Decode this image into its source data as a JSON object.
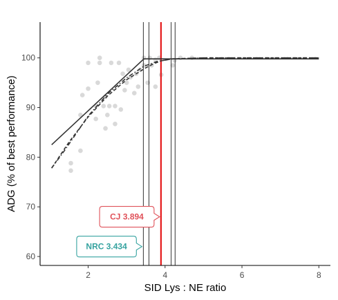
{
  "chart_data": {
    "type": "scatter",
    "xlabel": "SID Lys : NE ratio",
    "ylabel": "ADG (% of best performance)",
    "xlim": [
      0.75,
      8.3
    ],
    "ylim": [
      58.2,
      107.2
    ],
    "x_ticks": [
      2,
      4,
      6,
      8
    ],
    "y_ticks": [
      60,
      70,
      80,
      90,
      100
    ],
    "grid": false,
    "colors": {
      "points": "#d9d9d9",
      "fit_line": "#333333",
      "cj_line": "#e41a1c",
      "cj_text": "#e0525a",
      "nrc_text": "#36a3a0",
      "axis": "#000000",
      "tick_text": "#4d4d4d"
    },
    "points": [
      [
        1.55,
        77.3
      ],
      [
        1.55,
        78.8
      ],
      [
        1.8,
        81.3
      ],
      [
        1.8,
        88.5
      ],
      [
        1.85,
        92.5
      ],
      [
        2.0,
        99.0
      ],
      [
        2.0,
        93.8
      ],
      [
        2.2,
        87.7
      ],
      [
        2.2,
        90.3
      ],
      [
        2.25,
        95.0
      ],
      [
        2.3,
        99.0
      ],
      [
        2.3,
        100.0
      ],
      [
        2.4,
        90.3
      ],
      [
        2.45,
        85.8
      ],
      [
        2.45,
        92.2
      ],
      [
        2.5,
        88.5
      ],
      [
        2.55,
        90.3
      ],
      [
        2.6,
        99.0
      ],
      [
        2.7,
        86.7
      ],
      [
        2.7,
        90.3
      ],
      [
        2.8,
        99.0
      ],
      [
        2.85,
        89.6
      ],
      [
        2.9,
        96.8
      ],
      [
        2.95,
        93.5
      ],
      [
        3.0,
        95.0
      ],
      [
        3.05,
        97.6
      ],
      [
        3.1,
        96.1
      ],
      [
        3.2,
        92.9
      ],
      [
        3.25,
        96.8
      ],
      [
        3.3,
        94.2
      ],
      [
        3.35,
        97.6
      ],
      [
        3.45,
        100.0
      ],
      [
        3.45,
        98.5
      ],
      [
        3.55,
        95.0
      ],
      [
        3.6,
        100.0
      ],
      [
        3.65,
        98.5
      ],
      [
        3.75,
        94.2
      ],
      [
        3.75,
        99.6
      ],
      [
        3.85,
        100.0
      ],
      [
        3.9,
        96.6
      ],
      [
        4.2,
        98.5
      ],
      [
        4.25,
        99.5
      ],
      [
        4.4,
        100.0
      ],
      [
        4.7,
        100.0
      ]
    ],
    "fits": [
      {
        "style": "solid",
        "x": [
          1.05,
          3.45,
          8.0
        ],
        "y": [
          82.5,
          99.8,
          99.8
        ]
      },
      {
        "style": "dashed",
        "x": [
          1.05,
          1.5,
          2.0,
          2.5,
          3.0,
          3.5,
          3.7,
          3.9,
          4.2,
          5.0,
          8.0
        ],
        "y": [
          77.8,
          83.0,
          88.1,
          92.3,
          95.6,
          98.0,
          98.8,
          99.4,
          99.8,
          100.0,
          100.0
        ]
      },
      {
        "style": "dotdash",
        "x": [
          1.05,
          1.4,
          2.0,
          2.5,
          3.0,
          3.45,
          3.8,
          4.2,
          5.0,
          8.0
        ],
        "y": [
          77.8,
          81.5,
          88.3,
          92.7,
          96.0,
          98.3,
          99.3,
          99.8,
          100.0,
          100.0
        ]
      }
    ],
    "vlines_thin": [
      3.434,
      3.58,
      4.16,
      4.26
    ],
    "vline_highlight": 3.894,
    "callouts": [
      {
        "label": "CJ 3.894",
        "x": 3.894,
        "y": 68.0,
        "color_key": "cj_text"
      },
      {
        "label": "NRC 3.434",
        "x": 3.434,
        "y": 62.0,
        "color_key": "nrc_text"
      }
    ]
  }
}
